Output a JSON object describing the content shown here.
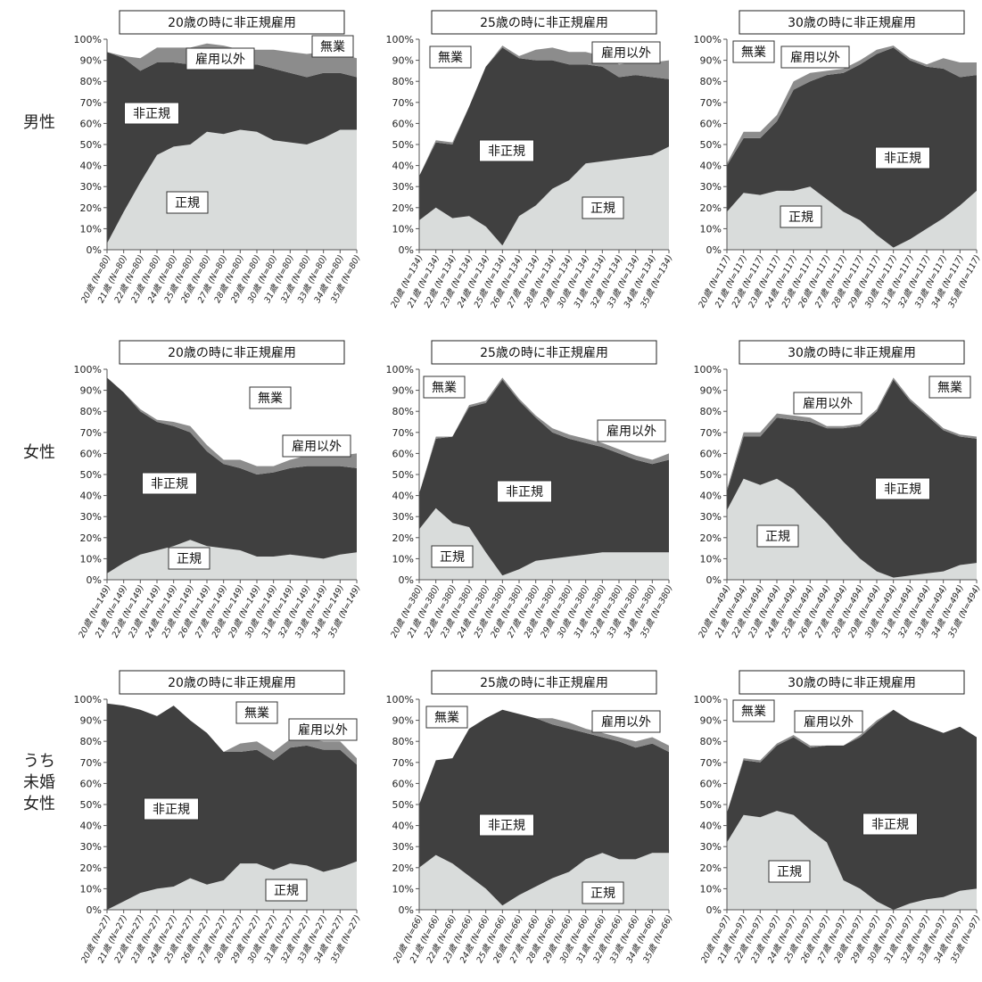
{
  "colors": {
    "regular": "#d9dcdb",
    "nonregular": "#404040",
    "other": "#8c8c8c",
    "none": "#ffffff"
  },
  "rows": [
    {
      "label_lines": [
        "男性"
      ]
    },
    {
      "label_lines": [
        "女性"
      ]
    },
    {
      "label_lines": [
        "うち",
        "未婚",
        "女性"
      ]
    }
  ],
  "chart_data": [
    {
      "type": "area",
      "title": "20歳の時に非正規雇用",
      "x": [
        "20歳 (N=80)",
        "21歳 (N=80)",
        "22歳 (N=80)",
        "23歳 (N=80)",
        "24歳 (N=80)",
        "25歳 (N=80)",
        "26歳 (N=80)",
        "27歳 (N=80)",
        "28歳 (N=80)",
        "29歳 (N=80)",
        "30歳 (N=80)",
        "31歳 (N=80)",
        "32歳 (N=80)",
        "33歳 (N=80)",
        "34歳 (N=80)",
        "35歳 (N=80)"
      ],
      "ylim": [
        0,
        100
      ],
      "yticks": [
        "0%",
        "10%",
        "20%",
        "30%",
        "40%",
        "50%",
        "60%",
        "70%",
        "80%",
        "90%",
        "100%"
      ],
      "series": [
        {
          "name": "正規",
          "values": [
            3,
            18,
            32,
            45,
            49,
            50,
            56,
            55,
            57,
            56,
            52,
            51,
            50,
            53,
            57,
            57
          ]
        },
        {
          "name": "非正規",
          "values": [
            91,
            73,
            53,
            44,
            40,
            38,
            35,
            35,
            30,
            32,
            34,
            33,
            32,
            31,
            27,
            25
          ]
        },
        {
          "name": "雇用以外",
          "values": [
            0,
            1,
            6,
            7,
            7,
            8,
            7,
            7,
            8,
            7,
            9,
            10,
            11,
            10,
            9,
            9
          ]
        },
        {
          "name": "無業",
          "values": [
            6,
            8,
            9,
            4,
            4,
            4,
            2,
            3,
            5,
            5,
            5,
            6,
            7,
            6,
            7,
            9
          ]
        }
      ],
      "annotations": [
        "無業",
        "雇用以外",
        "非正規",
        "正規"
      ]
    },
    {
      "type": "area",
      "title": "25歳の時に非正規雇用",
      "x": [
        "20歳 (N=134)",
        "21歳 (N=134)",
        "22歳 (N=134)",
        "23歳 (N=134)",
        "24歳 (N=134)",
        "25歳 (N=134)",
        "26歳 (N=134)",
        "27歳 (N=134)",
        "28歳 (N=134)",
        "29歳 (N=134)",
        "30歳 (N=134)",
        "31歳 (N=134)",
        "32歳 (N=134)",
        "33歳 (N=134)",
        "34歳 (N=134)",
        "35歳 (N=134)"
      ],
      "ylim": [
        0,
        100
      ],
      "yticks": [
        "0%",
        "10%",
        "20%",
        "30%",
        "40%",
        "50%",
        "60%",
        "70%",
        "80%",
        "90%",
        "100%"
      ],
      "series": [
        {
          "name": "正規",
          "values": [
            14,
            20,
            15,
            16,
            11,
            2,
            16,
            21,
            29,
            33,
            41,
            42,
            43,
            44,
            45,
            49
          ]
        },
        {
          "name": "非正規",
          "values": [
            21,
            31,
            35,
            52,
            76,
            94,
            75,
            69,
            61,
            55,
            47,
            45,
            39,
            39,
            37,
            32
          ]
        },
        {
          "name": "雇用以外",
          "values": [
            0,
            1,
            1,
            0,
            0,
            1,
            1,
            5,
            6,
            6,
            6,
            5,
            6,
            6,
            7,
            9
          ]
        },
        {
          "name": "無業",
          "values": [
            65,
            48,
            49,
            32,
            13,
            3,
            8,
            5,
            4,
            6,
            6,
            8,
            12,
            11,
            11,
            10
          ]
        }
      ],
      "annotations": [
        "無業",
        "雇用以外",
        "非正規",
        "正規"
      ]
    },
    {
      "type": "area",
      "title": "30歳の時に非正規雇用",
      "x": [
        "20歳 (N=117)",
        "21歳 (N=117)",
        "22歳 (N=117)",
        "23歳 (N=117)",
        "24歳 (N=117)",
        "25歳 (N=117)",
        "26歳 (N=117)",
        "27歳 (N=117)",
        "28歳 (N=117)",
        "29歳 (N=117)",
        "30歳 (N=117)",
        "31歳 (N=117)",
        "32歳 (N=117)",
        "33歳 (N=117)",
        "34歳 (N=117)",
        "35歳 (N=117)"
      ],
      "ylim": [
        0,
        100
      ],
      "yticks": [
        "0%",
        "10%",
        "20%",
        "30%",
        "40%",
        "50%",
        "60%",
        "70%",
        "80%",
        "90%",
        "100%"
      ],
      "series": [
        {
          "name": "正規",
          "values": [
            18,
            27,
            26,
            28,
            28,
            30,
            24,
            18,
            14,
            7,
            1,
            5,
            10,
            15,
            21,
            28
          ]
        },
        {
          "name": "非正規",
          "values": [
            22,
            26,
            27,
            33,
            48,
            50,
            59,
            66,
            74,
            86,
            95,
            85,
            77,
            71,
            61,
            55
          ]
        },
        {
          "name": "雇用以外",
          "values": [
            1,
            3,
            3,
            3,
            4,
            4,
            2,
            2,
            2,
            2,
            1,
            1,
            1,
            5,
            7,
            6
          ]
        },
        {
          "name": "無業",
          "values": [
            59,
            44,
            44,
            36,
            20,
            16,
            15,
            14,
            10,
            5,
            3,
            9,
            12,
            9,
            11,
            11
          ]
        }
      ],
      "annotations": [
        "無業",
        "雇用以外",
        "非正規",
        "正規"
      ]
    },
    {
      "type": "area",
      "title": "20歳の時に非正規雇用",
      "x": [
        "20歳 (N=149)",
        "21歳 (N=149)",
        "22歳 (N=149)",
        "23歳 (N=149)",
        "24歳 (N=149)",
        "25歳 (N=149)",
        "26歳 (N=149)",
        "27歳 (N=149)",
        "28歳 (N=149)",
        "29歳 (N=149)",
        "30歳 (N=149)",
        "31歳 (N=149)",
        "32歳 (N=149)",
        "33歳 (N=149)",
        "34歳 (N=149)",
        "35歳 (N=149)"
      ],
      "ylim": [
        0,
        100
      ],
      "yticks": [
        "0%",
        "10%",
        "20%",
        "30%",
        "40%",
        "50%",
        "60%",
        "70%",
        "80%",
        "90%",
        "100%"
      ],
      "series": [
        {
          "name": "正規",
          "values": [
            3,
            8,
            12,
            14,
            16,
            19,
            16,
            15,
            14,
            11,
            11,
            12,
            11,
            10,
            12,
            13
          ]
        },
        {
          "name": "非正規",
          "values": [
            93,
            81,
            68,
            61,
            57,
            51,
            45,
            40,
            39,
            39,
            40,
            41,
            43,
            44,
            42,
            40
          ]
        },
        {
          "name": "雇用以外",
          "values": [
            0,
            0,
            1,
            1,
            2,
            3,
            3,
            2,
            4,
            4,
            3,
            4,
            5,
            5,
            5,
            7
          ]
        },
        {
          "name": "無業",
          "values": [
            4,
            11,
            19,
            24,
            25,
            27,
            36,
            43,
            43,
            46,
            46,
            43,
            41,
            41,
            41,
            40
          ]
        }
      ],
      "annotations": [
        "無業",
        "雇用以外",
        "非正規",
        "正規"
      ]
    },
    {
      "type": "area",
      "title": "25歳の時に非正規雇用",
      "x": [
        "20歳 (N=380)",
        "21歳 (N=380)",
        "22歳 (N=380)",
        "23歳 (N=380)",
        "24歳 (N=380)",
        "25歳 (N=380)",
        "26歳 (N=380)",
        "27歳 (N=380)",
        "28歳 (N=380)",
        "29歳 (N=380)",
        "30歳 (N=380)",
        "31歳 (N=380)",
        "32歳 (N=380)",
        "33歳 (N=380)",
        "34歳 (N=380)",
        "35歳 (N=380)"
      ],
      "ylim": [
        0,
        100
      ],
      "yticks": [
        "0%",
        "10%",
        "20%",
        "30%",
        "40%",
        "50%",
        "60%",
        "70%",
        "80%",
        "90%",
        "100%"
      ],
      "series": [
        {
          "name": "正規",
          "values": [
            24,
            34,
            27,
            25,
            13,
            2,
            5,
            9,
            10,
            11,
            12,
            13,
            13,
            13,
            13,
            13
          ]
        },
        {
          "name": "非正規",
          "values": [
            17,
            33,
            41,
            57,
            71,
            93,
            80,
            68,
            60,
            56,
            53,
            50,
            47,
            44,
            42,
            44
          ]
        },
        {
          "name": "雇用以外",
          "values": [
            0,
            1,
            0,
            1,
            1,
            1,
            1,
            1,
            2,
            2,
            2,
            2,
            2,
            2,
            2,
            3
          ]
        },
        {
          "name": "無業",
          "values": [
            59,
            32,
            32,
            17,
            15,
            4,
            14,
            22,
            28,
            31,
            33,
            35,
            38,
            41,
            43,
            40
          ]
        }
      ],
      "annotations": [
        "無業",
        "雇用以外",
        "非正規",
        "正規"
      ]
    },
    {
      "type": "area",
      "title": "30歳の時に非正規雇用",
      "x": [
        "20歳 (N=494)",
        "21歳 (N=494)",
        "22歳 (N=494)",
        "23歳 (N=494)",
        "24歳 (N=494)",
        "25歳 (N=494)",
        "26歳 (N=494)",
        "27歳 (N=494)",
        "28歳 (N=494)",
        "29歳 (N=494)",
        "30歳 (N=494)",
        "31歳 (N=494)",
        "32歳 (N=494)",
        "33歳 (N=494)",
        "34歳 (N=494)",
        "35歳 (N=494)"
      ],
      "ylim": [
        0,
        100
      ],
      "yticks": [
        "0%",
        "10%",
        "20%",
        "30%",
        "40%",
        "50%",
        "60%",
        "70%",
        "80%",
        "90%",
        "100%"
      ],
      "series": [
        {
          "name": "正規",
          "values": [
            33,
            48,
            45,
            48,
            43,
            35,
            27,
            18,
            10,
            4,
            1,
            2,
            3,
            4,
            7,
            8
          ]
        },
        {
          "name": "非正規",
          "values": [
            9,
            20,
            23,
            29,
            33,
            40,
            45,
            54,
            63,
            76,
            94,
            83,
            75,
            67,
            61,
            59
          ]
        },
        {
          "name": "雇用以外",
          "values": [
            1,
            2,
            2,
            2,
            2,
            2,
            1,
            1,
            1,
            1,
            1,
            1,
            1,
            1,
            1,
            1
          ]
        },
        {
          "name": "無業",
          "values": [
            57,
            30,
            30,
            21,
            22,
            23,
            27,
            27,
            26,
            19,
            4,
            14,
            21,
            28,
            31,
            32
          ]
        }
      ],
      "annotations": [
        "無業",
        "雇用以外",
        "非正規",
        "正規"
      ]
    },
    {
      "type": "area",
      "title": "20歳の時に非正規雇用",
      "x": [
        "20歳 (N=27)",
        "21歳 (N=27)",
        "22歳 (N=27)",
        "23歳 (N=27)",
        "24歳 (N=27)",
        "25歳 (N=27)",
        "26歳 (N=27)",
        "27歳 (N=27)",
        "28歳 (N=27)",
        "29歳 (N=27)",
        "30歳 (N=27)",
        "31歳 (N=27)",
        "32歳 (N=27)",
        "33歳 (N=27)",
        "34歳 (N=27)",
        "35歳 (N=27)"
      ],
      "ylim": [
        0,
        100
      ],
      "yticks": [
        "0%",
        "10%",
        "20%",
        "30%",
        "40%",
        "50%",
        "60%",
        "70%",
        "80%",
        "90%",
        "100%"
      ],
      "series": [
        {
          "name": "正規",
          "values": [
            0,
            4,
            8,
            10,
            11,
            15,
            12,
            14,
            22,
            22,
            19,
            22,
            21,
            18,
            20,
            23
          ]
        },
        {
          "name": "非正規",
          "values": [
            98,
            93,
            87,
            82,
            86,
            75,
            72,
            61,
            53,
            54,
            52,
            55,
            57,
            58,
            56,
            46
          ]
        },
        {
          "name": "雇用以外",
          "values": [
            0,
            0,
            0,
            0,
            0,
            0,
            0,
            0,
            4,
            4,
            4,
            4,
            3,
            4,
            4,
            3
          ]
        },
        {
          "name": "無業",
          "values": [
            2,
            3,
            5,
            8,
            3,
            10,
            16,
            25,
            21,
            20,
            25,
            19,
            19,
            20,
            20,
            28
          ]
        }
      ],
      "annotations": [
        "無業",
        "雇用以外",
        "非正規",
        "正規"
      ]
    },
    {
      "type": "area",
      "title": "25歳の時に非正規雇用",
      "x": [
        "20歳 (N=66)",
        "21歳 (N=66)",
        "22歳 (N=66)",
        "23歳 (N=66)",
        "24歳 (N=66)",
        "25歳 (N=66)",
        "26歳 (N=66)",
        "27歳 (N=66)",
        "28歳 (N=66)",
        "29歳 (N=66)",
        "30歳 (N=66)",
        "31歳 (N=66)",
        "32歳 (N=66)",
        "33歳 (N=66)",
        "34歳 (N=66)",
        "35歳 (N=66)"
      ],
      "ylim": [
        0,
        100
      ],
      "yticks": [
        "0%",
        "10%",
        "20%",
        "30%",
        "40%",
        "50%",
        "60%",
        "70%",
        "80%",
        "90%",
        "100%"
      ],
      "series": [
        {
          "name": "正規",
          "values": [
            20,
            26,
            22,
            16,
            10,
            2,
            7,
            11,
            15,
            18,
            24,
            27,
            24,
            24,
            27,
            27
          ]
        },
        {
          "name": "非正規",
          "values": [
            30,
            45,
            50,
            70,
            81,
            93,
            86,
            80,
            73,
            68,
            60,
            55,
            56,
            53,
            52,
            48
          ]
        },
        {
          "name": "雇用以外",
          "values": [
            0,
            0,
            0,
            0,
            0,
            0,
            0,
            0,
            3,
            3,
            2,
            2,
            2,
            3,
            3,
            3
          ]
        },
        {
          "name": "無業",
          "values": [
            50,
            29,
            28,
            14,
            9,
            5,
            7,
            9,
            9,
            11,
            14,
            16,
            18,
            20,
            18,
            22
          ]
        }
      ],
      "annotations": [
        "無業",
        "雇用以外",
        "非正規",
        "正規"
      ]
    },
    {
      "type": "area",
      "title": "30歳の時に非正規雇用",
      "x": [
        "20歳 (N=97)",
        "21歳 (N=97)",
        "22歳 (N=97)",
        "23歳 (N=97)",
        "24歳 (N=97)",
        "25歳 (N=97)",
        "26歳 (N=97)",
        "27歳 (N=97)",
        "28歳 (N=97)",
        "29歳 (N=97)",
        "30歳 (N=97)",
        "31歳 (N=97)",
        "32歳 (N=97)",
        "33歳 (N=97)",
        "34歳 (N=97)",
        "35歳 (N=97)"
      ],
      "ylim": [
        0,
        100
      ],
      "yticks": [
        "0%",
        "10%",
        "20%",
        "30%",
        "40%",
        "50%",
        "60%",
        "70%",
        "80%",
        "90%",
        "100%"
      ],
      "series": [
        {
          "name": "正規",
          "values": [
            32,
            45,
            44,
            47,
            45,
            38,
            32,
            14,
            10,
            4,
            0,
            3,
            5,
            6,
            9,
            10
          ]
        },
        {
          "name": "非正規",
          "values": [
            14,
            26,
            26,
            31,
            37,
            39,
            46,
            64,
            72,
            85,
            95,
            87,
            82,
            78,
            78,
            72
          ]
        },
        {
          "name": "雇用以外",
          "values": [
            0,
            1,
            1,
            1,
            1,
            1,
            0,
            0,
            1,
            1,
            0,
            0,
            0,
            0,
            0,
            0
          ]
        },
        {
          "name": "無業",
          "values": [
            54,
            28,
            29,
            21,
            17,
            22,
            22,
            22,
            17,
            10,
            5,
            10,
            13,
            16,
            13,
            18
          ]
        }
      ],
      "annotations": [
        "無業",
        "雇用以外",
        "非正規",
        "正規"
      ]
    }
  ]
}
